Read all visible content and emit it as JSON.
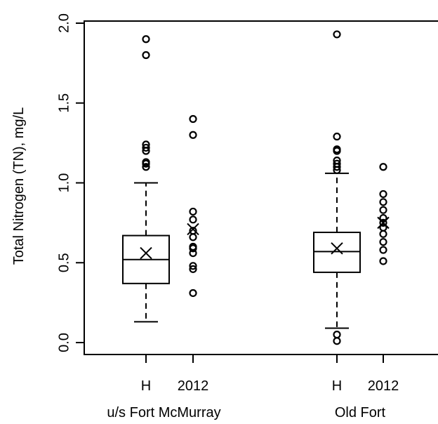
{
  "chart_data": {
    "type": "box",
    "ylabel": "Total Nitrogen (TN), mg/L",
    "ylim": [
      0,
      2.0
    ],
    "yticks": [
      "0.0",
      "0.5",
      "1.0",
      "1.5",
      "2.0"
    ],
    "groups": [
      {
        "label": "u/s Fort McMurray",
        "boxes": [
          {
            "tick": "H",
            "q1": 0.37,
            "median": 0.52,
            "q3": 0.67,
            "whisker_low": 0.13,
            "whisker_high": 1.0,
            "mean": 0.56,
            "outliers": [
              1.1,
              1.12,
              1.13,
              1.2,
              1.22,
              1.24,
              1.8,
              1.9
            ]
          }
        ],
        "points": [
          {
            "tick": "2012",
            "mean": 0.71,
            "values": [
              0.31,
              0.46,
              0.48,
              0.56,
              0.59,
              0.6,
              0.66,
              0.7,
              0.77,
              0.82,
              1.3,
              1.4
            ]
          }
        ]
      },
      {
        "label": "Old Fort",
        "boxes": [
          {
            "tick": "H",
            "q1": 0.44,
            "median": 0.57,
            "q3": 0.69,
            "whisker_low": 0.09,
            "whisker_high": 1.06,
            "mean": 0.59,
            "outliers": [
              0.01,
              0.05,
              1.08,
              1.1,
              1.12,
              1.14,
              1.2,
              1.21,
              1.29,
              1.93
            ]
          }
        ],
        "points": [
          {
            "tick": "2012",
            "mean": 0.75,
            "values": [
              0.51,
              0.58,
              0.63,
              0.68,
              0.72,
              0.75,
              0.78,
              0.83,
              0.88,
              0.93,
              1.1
            ]
          }
        ]
      }
    ]
  }
}
